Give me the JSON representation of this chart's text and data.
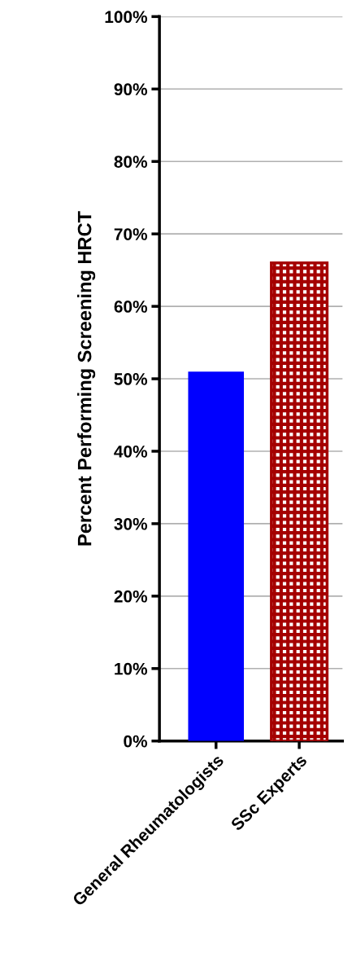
{
  "chart_data": {
    "type": "bar",
    "ylabel": "Percent Performing Screening HRCT",
    "categories": [
      "General Rheumatologists",
      "SSc Experts"
    ],
    "values": [
      51,
      66
    ],
    "colors": [
      "#0000ff",
      "#a50000"
    ],
    "ylim": [
      0,
      100
    ],
    "yticks": [
      {
        "value": 0,
        "label": "0%"
      },
      {
        "value": 10,
        "label": "10%"
      },
      {
        "value": 20,
        "label": "20%"
      },
      {
        "value": 30,
        "label": "30%"
      },
      {
        "value": 40,
        "label": "40%"
      },
      {
        "value": 50,
        "label": "50%"
      },
      {
        "value": 60,
        "label": "60%"
      },
      {
        "value": 70,
        "label": "70%"
      },
      {
        "value": 80,
        "label": "80%"
      },
      {
        "value": 90,
        "label": "90%"
      },
      {
        "value": 100,
        "label": "100%"
      }
    ],
    "grid": "y"
  }
}
